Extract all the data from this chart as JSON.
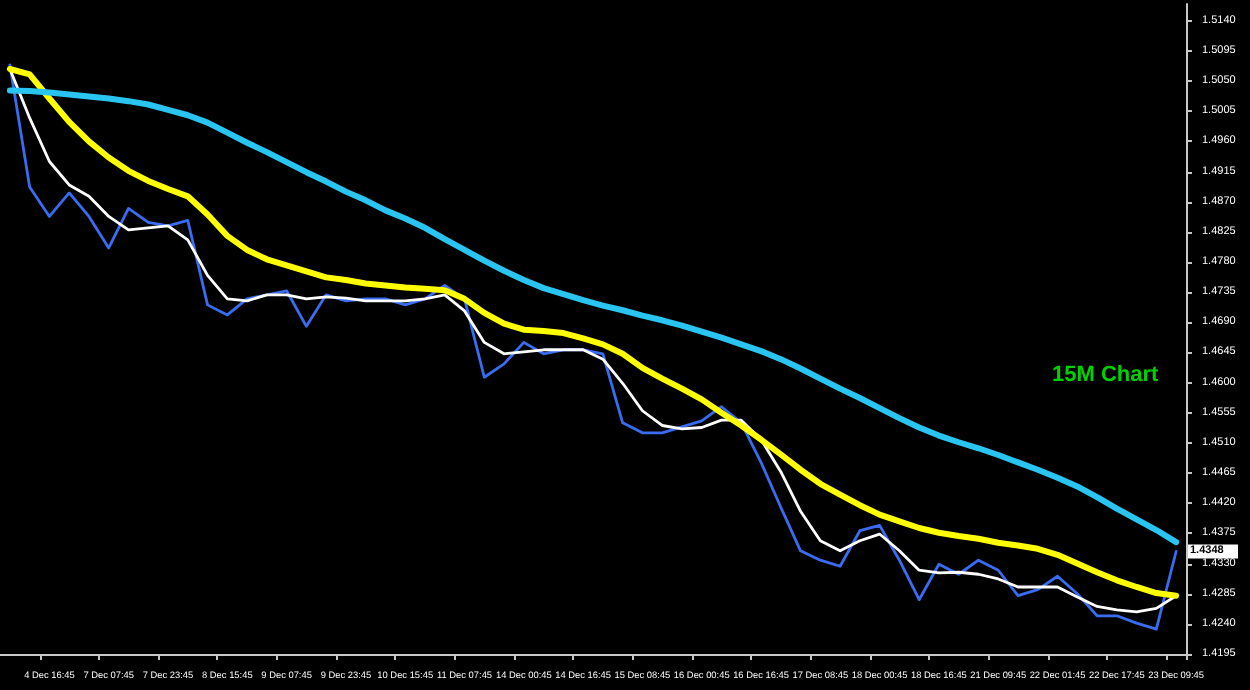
{
  "chart_data": {
    "type": "line",
    "marker": "none",
    "line_style": "solid",
    "categories": [
      null,
      null,
      "4 Dec 16:45",
      null,
      null,
      "7 Dec 07:45",
      null,
      null,
      "7 Dec 23:45",
      null,
      null,
      "8 Dec 15:45",
      null,
      null,
      "9 Dec 07:45",
      null,
      null,
      "9 Dec 23:45",
      null,
      null,
      "10 Dec 15:45",
      null,
      null,
      "11 Dec 07:45",
      null,
      null,
      "14 Dec 00:45",
      null,
      null,
      "14 Dec 16:45",
      null,
      null,
      "15 Dec 08:45",
      null,
      null,
      "16 Dec 00:45",
      null,
      null,
      "16 Dec 16:45",
      null,
      null,
      "17 Dec 08:45",
      null,
      null,
      "18 Dec 00:45",
      null,
      null,
      "18 Dec 16:45",
      null,
      null,
      "21 Dec 09:45",
      null,
      null,
      "22 Dec 01:45",
      null,
      null,
      "22 Dec 17:45",
      null,
      null,
      "23 Dec 09:45"
    ],
    "series": [
      {
        "color": "#3a6cf0",
        "values": [
          1.5074,
          1.4892,
          1.4848,
          1.4883,
          1.4848,
          1.4801,
          1.486,
          1.4839,
          1.4834,
          1.4842,
          1.4716,
          1.4701,
          1.4725,
          1.4731,
          1.4737,
          1.4684,
          1.4731,
          1.4722,
          1.4725,
          1.4725,
          1.4716,
          1.4725,
          1.4745,
          1.4725,
          1.4608,
          1.4628,
          1.466,
          1.4643,
          1.4649,
          1.4649,
          1.4643,
          1.454,
          1.4525,
          1.4525,
          1.4534,
          1.4543,
          1.4564,
          1.454,
          1.4481,
          1.4414,
          1.4349,
          1.4335,
          1.4326,
          1.4379,
          1.4387,
          1.4335,
          1.4276,
          1.4329,
          1.4314,
          1.4335,
          1.432,
          1.4282,
          1.4291,
          1.4311,
          1.4285,
          1.4252,
          1.4252,
          1.4241,
          1.4232,
          1.4348
        ]
      },
      {
        "color": "#ffffff",
        "values": [
          1.5068,
          1.4995,
          1.493,
          1.4895,
          1.4878,
          1.4848,
          1.4828,
          1.4831,
          1.4834,
          1.4813,
          1.476,
          1.4725,
          1.4722,
          1.4731,
          1.4731,
          1.4725,
          1.4728,
          1.4726,
          1.4722,
          1.4722,
          1.4722,
          1.4725,
          1.4731,
          1.4707,
          1.466,
          1.4643,
          1.4646,
          1.4649,
          1.4649,
          1.4649,
          1.4635,
          1.4599,
          1.4558,
          1.4536,
          1.4531,
          1.4533,
          1.4544,
          1.4544,
          1.4515,
          1.4467,
          1.4408,
          1.4364,
          1.4349,
          1.4364,
          1.4374,
          1.4349,
          1.432,
          1.4316,
          1.4317,
          1.4314,
          1.4307,
          1.4295,
          1.4295,
          1.4295,
          1.428,
          1.4266,
          1.4261,
          1.4258,
          1.4263,
          1.4282
        ]
      },
      {
        "color": "#ffff00",
        "values": [
          1.5068,
          1.506,
          1.5024,
          1.4989,
          1.496,
          1.4936,
          1.4916,
          1.4901,
          1.4889,
          1.4878,
          1.4851,
          1.4819,
          1.4798,
          1.4784,
          1.4775,
          1.4766,
          1.4757,
          1.4753,
          1.4748,
          1.4745,
          1.4742,
          1.474,
          1.4738,
          1.4725,
          1.4704,
          1.4688,
          1.4679,
          1.4677,
          1.4674,
          1.4666,
          1.4657,
          1.4643,
          1.4622,
          1.4606,
          1.4591,
          1.4575,
          1.4555,
          1.4536,
          1.4515,
          1.4493,
          1.447,
          1.4449,
          1.4433,
          1.4417,
          1.4403,
          1.4393,
          1.4383,
          1.4376,
          1.4371,
          1.4367,
          1.4361,
          1.4357,
          1.4352,
          1.4343,
          1.433,
          1.4317,
          1.4305,
          1.4295,
          1.4286,
          1.4282
        ]
      },
      {
        "color": "#29c5f0",
        "values": [
          1.5036,
          1.5035,
          1.5033,
          1.503,
          1.5027,
          1.5024,
          1.502,
          1.5015,
          1.5007,
          1.4999,
          1.4988,
          1.4973,
          1.4958,
          1.4944,
          1.4929,
          1.4914,
          1.49,
          1.4885,
          1.4872,
          1.4857,
          1.4845,
          1.4831,
          1.4814,
          1.4798,
          1.4782,
          1.4767,
          1.4753,
          1.4741,
          1.4732,
          1.4723,
          1.4715,
          1.4708,
          1.47,
          1.4693,
          1.4685,
          1.4676,
          1.4667,
          1.4657,
          1.4647,
          1.4635,
          1.4621,
          1.4606,
          1.4591,
          1.4577,
          1.4562,
          1.4547,
          1.4533,
          1.4521,
          1.4511,
          1.4502,
          1.4492,
          1.4481,
          1.447,
          1.4458,
          1.4445,
          1.4429,
          1.4412,
          1.4396,
          1.438,
          1.4362
        ]
      }
    ],
    "ylim": [
      1.4195,
      1.5165
    ],
    "yticks": [
      {
        "value": 1.4195,
        "label": "1.4195"
      },
      {
        "value": 1.424,
        "label": "1.4240"
      },
      {
        "value": 1.4285,
        "label": "1.4285"
      },
      {
        "value": 1.433,
        "label": "1.4330"
      },
      {
        "value": 1.4375,
        "label": "1.4375"
      },
      {
        "value": 1.442,
        "label": "1.4420"
      },
      {
        "value": 1.4465,
        "label": "1.4465"
      },
      {
        "value": 1.451,
        "label": "1.4510"
      },
      {
        "value": 1.4555,
        "label": "1.4555"
      },
      {
        "value": 1.46,
        "label": "1.4600"
      },
      {
        "value": 1.4645,
        "label": "1.4645"
      },
      {
        "value": 1.469,
        "label": "1.4690"
      },
      {
        "value": 1.4735,
        "label": "1.4735"
      },
      {
        "value": 1.478,
        "label": "1.4780"
      },
      {
        "value": 1.4825,
        "label": "1.4825"
      },
      {
        "value": 1.487,
        "label": "1.4870"
      },
      {
        "value": 1.4915,
        "label": "1.4915"
      },
      {
        "value": 1.496,
        "label": "1.4960"
      },
      {
        "value": 1.5005,
        "label": "1.5005"
      },
      {
        "value": 1.505,
        "label": "1.5050"
      },
      {
        "value": 1.5095,
        "label": "1.5095"
      },
      {
        "value": 1.514,
        "label": "1.5140"
      }
    ],
    "annotations": [
      "15M Chart",
      "1.4348"
    ]
  }
}
